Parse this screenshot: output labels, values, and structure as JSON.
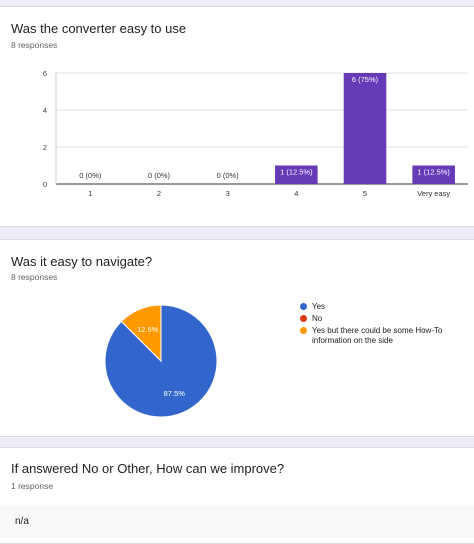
{
  "questions": [
    {
      "title": "Was the converter easy to use",
      "responses": "8 responses"
    },
    {
      "title": "Was it easy to navigate?",
      "responses": "8 responses"
    },
    {
      "title": "If answered No or Other, How can we improve?",
      "responses": "1 response",
      "answer": "n/a"
    }
  ],
  "chart_data": [
    {
      "type": "bar",
      "title": "Was the converter easy to use",
      "categories": [
        "1",
        "2",
        "3",
        "4",
        "5",
        "Very easy"
      ],
      "values": [
        0,
        0,
        0,
        1,
        6,
        1
      ],
      "data_labels": [
        "0 (0%)",
        "0 (0%)",
        "0 (0%)",
        "1 (12.5%)",
        "6 (75%)",
        "1 (12.5%)"
      ],
      "ylim": [
        0,
        6
      ],
      "yticks": [
        0,
        2,
        4,
        6
      ],
      "grid": true,
      "bar_color": "#673ab7"
    },
    {
      "type": "pie",
      "title": "Was it easy to navigate?",
      "labels": [
        "Yes",
        "No",
        "Yes but there could be some How-To information on the side"
      ],
      "values": [
        87.5,
        0,
        12.5
      ],
      "slice_labels": [
        "87.5%",
        "",
        "12.5%"
      ],
      "colors": [
        "#3366cc",
        "#dc3912",
        "#ff9900"
      ],
      "legend_position": "right"
    }
  ]
}
